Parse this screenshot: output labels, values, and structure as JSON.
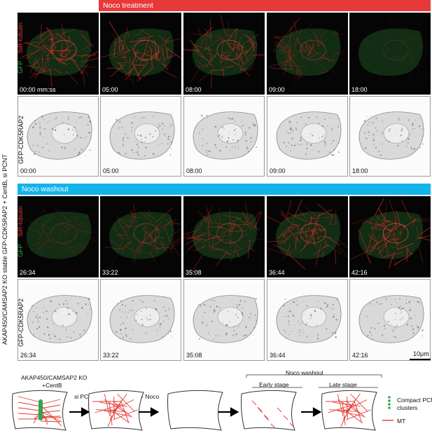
{
  "top_banner": {
    "label": "Noco treatment",
    "color": "#e8393a"
  },
  "mid_banner": {
    "label": "Noco washout",
    "color": "#13b4ea"
  },
  "side_label": "AKAP450/CAMSAP2 KO stable GFP-CDK5RAP2 + CentB, si PCNT",
  "channel_red": "SiR-tubulin",
  "channel_green": "GFP",
  "gray_label": "GFP-CDK5RAP2",
  "row1_times": [
    "00:00 mm:ss",
    "05:00",
    "08:00",
    "09:00",
    "18:00"
  ],
  "row2_times": [
    "00:00",
    "05:00",
    "08:00",
    "09:00",
    "18:00"
  ],
  "row3_times": [
    "26:34",
    "33:22",
    "35:08",
    "36:44",
    "42:16"
  ],
  "row4_times": [
    "26:34",
    "33:22",
    "35:08",
    "36:44",
    "42:16"
  ],
  "scale_bar": "10μm",
  "schematic": {
    "start_label_line1": "AKAP450/CAMSAP2 KO",
    "start_label_line2": "+CentB",
    "step1": "si PCNT",
    "step2": "+ Noco",
    "washout_header": "Noco washout",
    "early": "Early stage",
    "late": "Late stage",
    "legend_pcm_line1": "Compact PCM",
    "legend_pcm_line2": "clusters",
    "legend_mt": "MT"
  }
}
